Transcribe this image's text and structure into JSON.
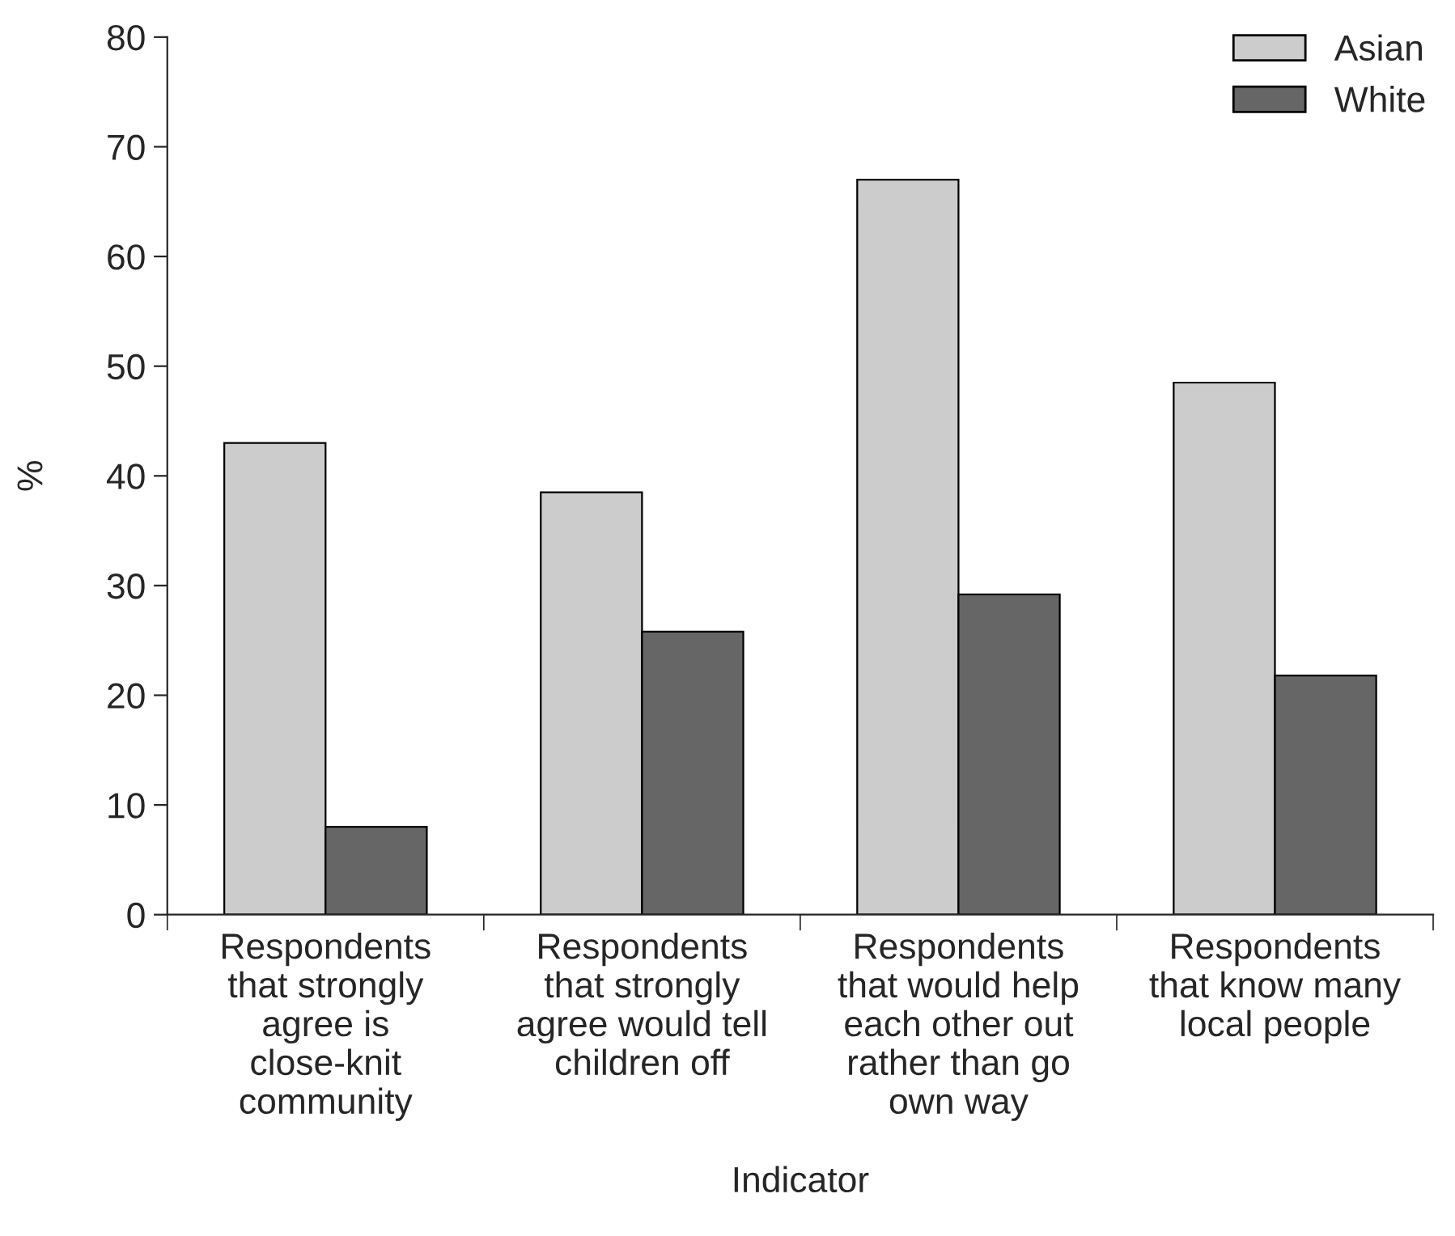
{
  "chart_data": {
    "type": "bar",
    "categories": [
      "Respondents\nthat strongly\nagree is\nclose-knit\ncommunity",
      "Respondents\nthat strongly\nagree would tell\nchildren off",
      "Respondents\nthat would help\neach other out\nrather than go\nown way",
      "Respondents\nthat know many\nlocal people"
    ],
    "series": [
      {
        "name": "Asian",
        "color": "#cccccc",
        "values": [
          43,
          38.5,
          67,
          48.5
        ]
      },
      {
        "name": "White",
        "color": "#666666",
        "values": [
          8,
          25.8,
          29.2,
          21.8
        ]
      }
    ],
    "xlabel": "Indicator",
    "ylabel": "%",
    "ylim": [
      0,
      80
    ],
    "yticks": [
      0,
      10,
      20,
      30,
      40,
      50,
      60,
      70,
      80
    ],
    "grid": false,
    "legend": "top right"
  }
}
